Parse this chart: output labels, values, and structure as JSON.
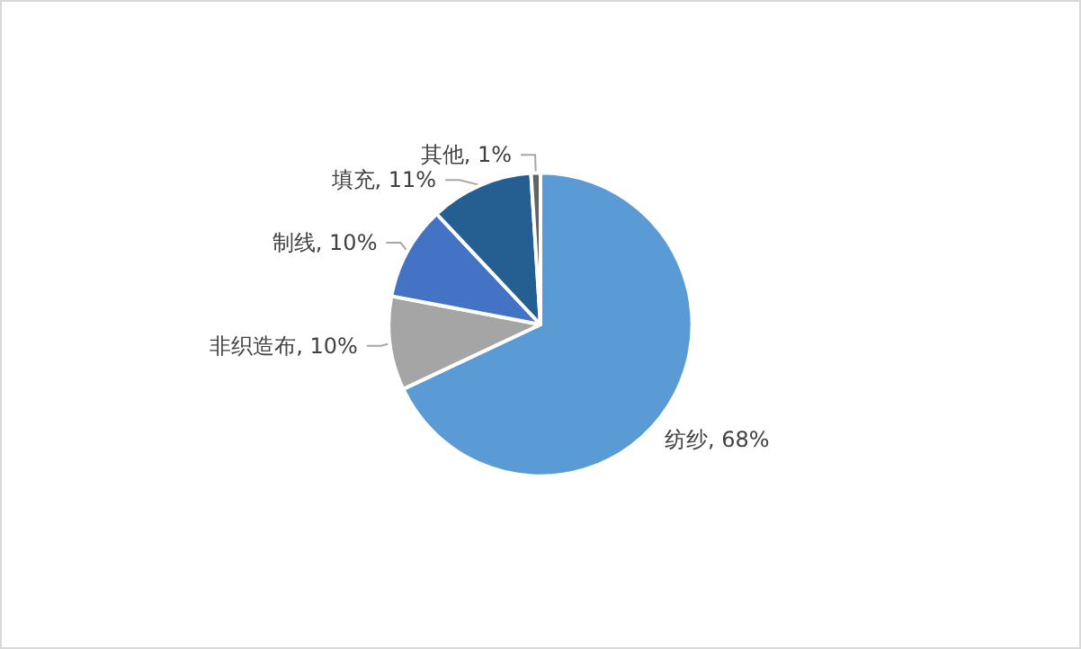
{
  "chart_data": {
    "type": "pie",
    "categories": [
      "纺纱",
      "非织造布",
      "制线",
      "填充",
      "其他"
    ],
    "values": [
      68,
      10,
      10,
      11,
      1
    ],
    "value_labels": [
      "68%",
      "10%",
      "10%",
      "11%",
      "1%"
    ],
    "colors": [
      "#5b9bd5",
      "#a5a5a5",
      "#4472c4",
      "#255e91",
      "#636363"
    ],
    "legend": false
  }
}
